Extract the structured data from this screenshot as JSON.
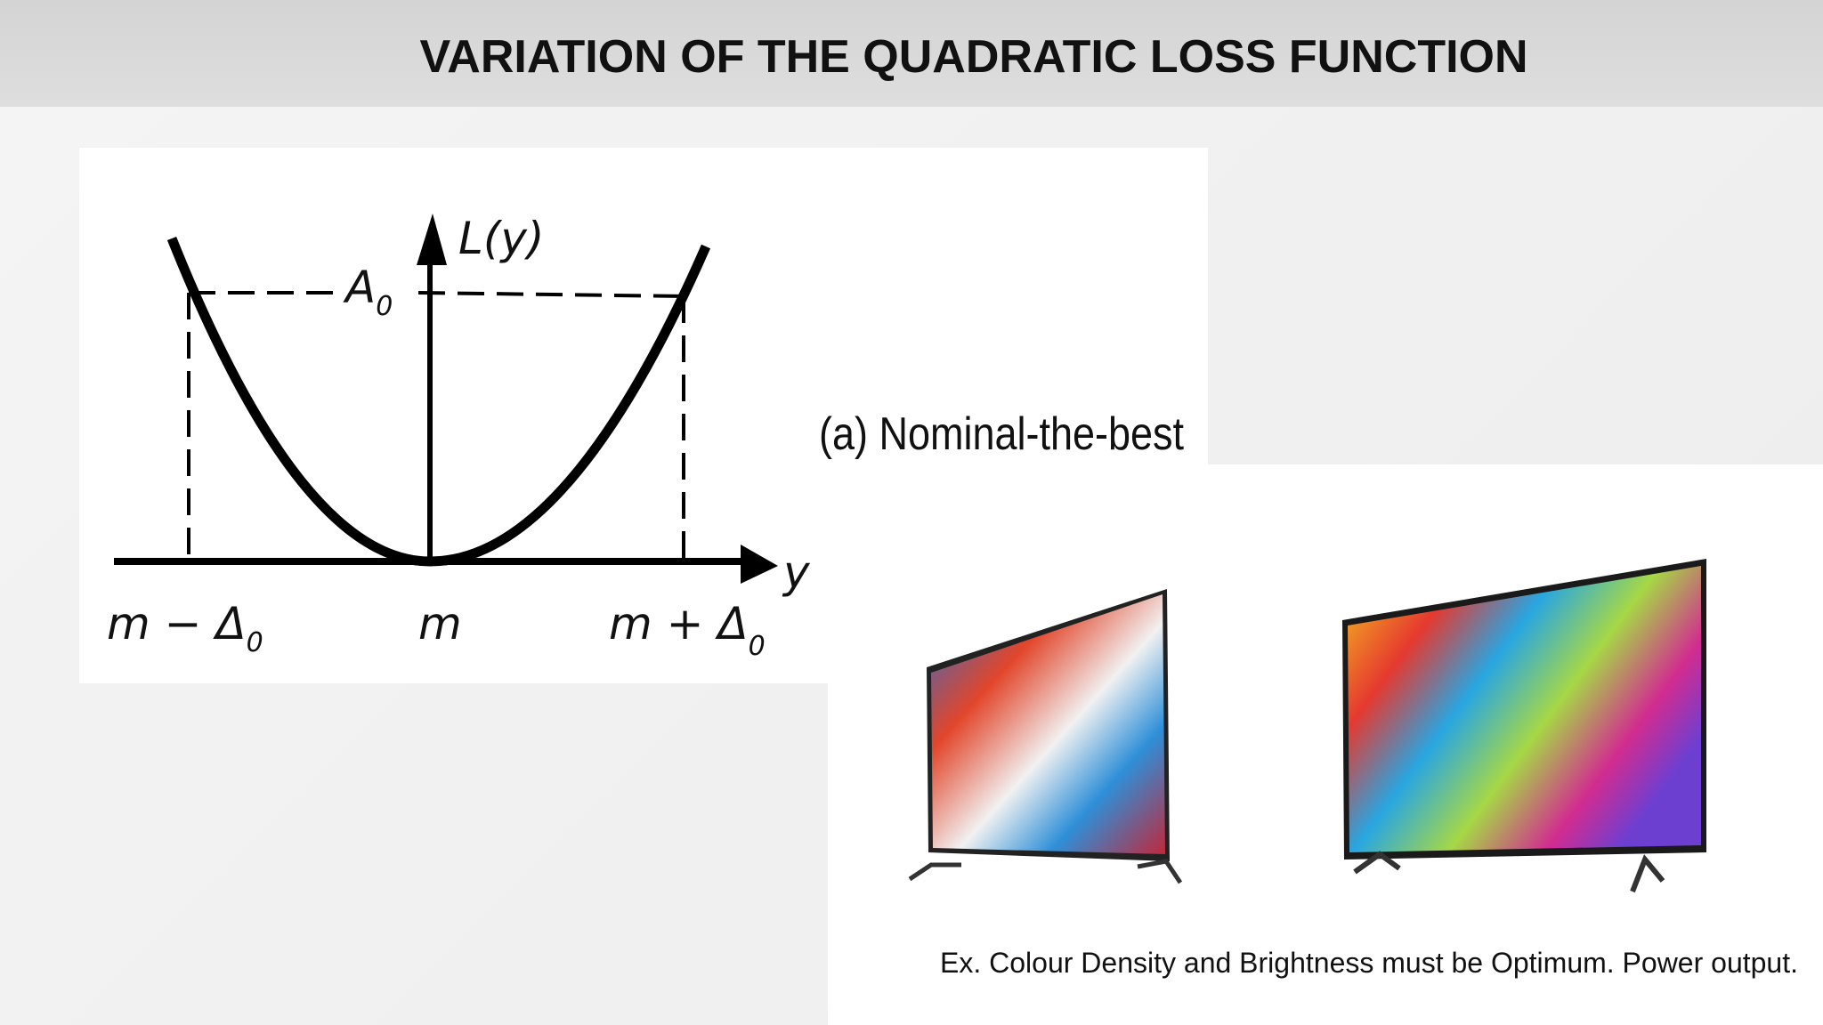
{
  "header": {
    "title": "VARIATION OF THE QUADRATIC LOSS FUNCTION"
  },
  "diagram": {
    "y_axis_label": "L(y)",
    "level_label": {
      "main": "A",
      "sub": "0"
    },
    "x_axis_label": "y",
    "left_label": {
      "main": "m − Δ",
      "sub": "0"
    },
    "center_label": "m",
    "right_label": {
      "main": "m + Δ",
      "sub": "0"
    },
    "caption": "(a)  Nominal-the-best"
  },
  "example": {
    "text": "Ex. Colour Density and Brightness must be Optimum. Power output."
  }
}
